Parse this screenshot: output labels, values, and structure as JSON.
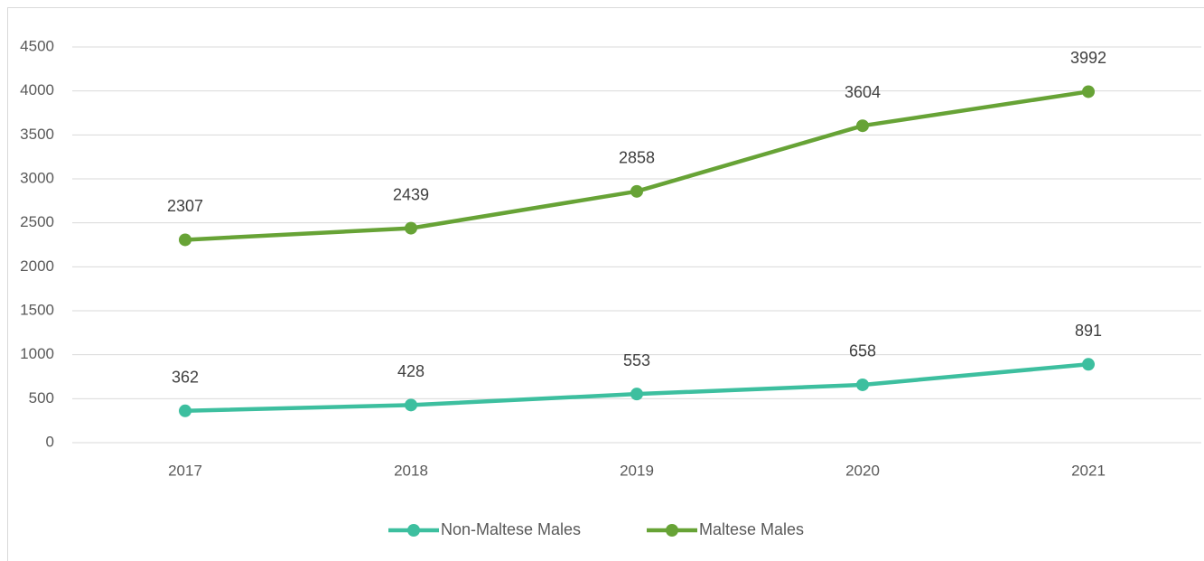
{
  "chart_data": {
    "type": "line",
    "categories": [
      "2017",
      "2018",
      "2019",
      "2020",
      "2021"
    ],
    "series": [
      {
        "name": "Non-Maltese Males",
        "color": "#3dbf9f",
        "values": [
          362,
          428,
          553,
          658,
          891
        ]
      },
      {
        "name": "Maltese Males",
        "color": "#67a336",
        "values": [
          2307,
          2439,
          2858,
          3604,
          3992
        ]
      }
    ],
    "ylim": [
      0,
      4500
    ],
    "yticks": [
      0,
      500,
      1000,
      1500,
      2000,
      2500,
      3000,
      3500,
      4000,
      4500
    ],
    "grid": true,
    "legend": "bottom",
    "data_labels": true
  }
}
